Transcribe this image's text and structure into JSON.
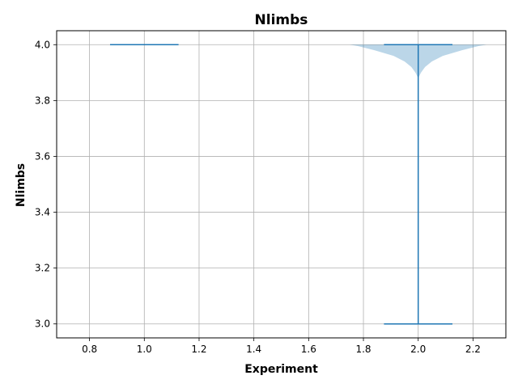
{
  "chart_data": {
    "type": "violin",
    "title": "Nlimbs",
    "xlabel": "Experiment",
    "ylabel": "Nlimbs",
    "xlim": [
      0.68,
      2.32
    ],
    "ylim": [
      2.95,
      4.05
    ],
    "grid": true,
    "x_ticks": [
      0.8,
      1.0,
      1.2,
      1.4,
      1.6,
      1.8,
      2.0,
      2.2
    ],
    "x_tick_labels": [
      "0.8",
      "1.0",
      "1.2",
      "1.4",
      "1.6",
      "1.8",
      "2.0",
      "2.2"
    ],
    "y_ticks": [
      3.0,
      3.2,
      3.4,
      3.6,
      3.8,
      4.0
    ],
    "y_tick_labels": [
      "3.0",
      "3.2",
      "3.4",
      "3.6",
      "3.8",
      "4.0"
    ],
    "colors": {
      "body": "#1f77b4",
      "line": "#1f77b4",
      "grid": "#b0b0b0"
    },
    "violins": [
      {
        "position": 1.0,
        "min": 4.0,
        "max": 4.0,
        "density": []
      },
      {
        "position": 2.0,
        "min": 3.0,
        "max": 4.0,
        "density": [
          [
            3.88,
            0.0
          ],
          [
            3.9,
            0.01
          ],
          [
            3.92,
            0.025
          ],
          [
            3.94,
            0.05
          ],
          [
            3.96,
            0.09
          ],
          [
            3.98,
            0.16
          ],
          [
            3.995,
            0.22
          ],
          [
            4.0,
            0.25
          ]
        ]
      }
    ]
  }
}
